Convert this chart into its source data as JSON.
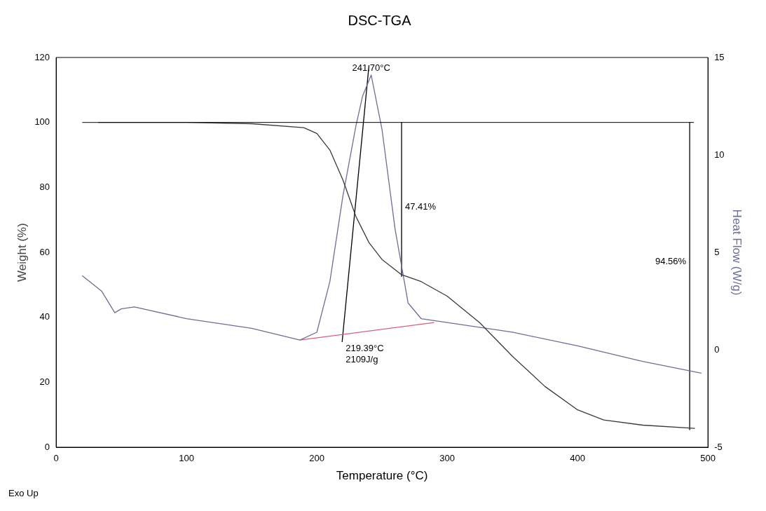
{
  "chart_data": {
    "type": "line",
    "title": "DSC-TGA",
    "xlabel": "Temperature (°C)",
    "ylabel": "Weight (%)",
    "y2label": "Heat Flow (W/g)",
    "xlim": [
      0,
      500
    ],
    "xticks": [
      0,
      100,
      200,
      300,
      400,
      500
    ],
    "ylim": [
      0,
      120
    ],
    "yticks": [
      0,
      20,
      40,
      60,
      80,
      100,
      120
    ],
    "y2lim": [
      -5,
      15
    ],
    "y2ticks": [
      -5,
      0,
      5,
      10,
      15
    ],
    "grid": false,
    "legend": false,
    "marker": "none",
    "line_style": "solid",
    "series": [
      {
        "color": "#3a3a3a",
        "x": [
          20,
          100,
          150,
          190,
          200,
          210,
          220,
          230,
          240,
          250,
          265,
          280,
          300,
          325,
          350,
          375,
          400,
          420,
          450,
          490
        ],
        "values": [
          100,
          100,
          99.6,
          98.4,
          96.6,
          91.5,
          82.3,
          71,
          63,
          57.8,
          53.1,
          51,
          46.5,
          38.3,
          28,
          18.7,
          11.5,
          8.4,
          6.8,
          5.8
        ]
      },
      {
        "color": "#6b6f9a",
        "axis": "y2",
        "x": [
          20,
          35,
          45,
          50,
          60,
          100,
          150,
          187,
          200,
          210,
          220,
          230,
          235,
          241.7,
          250,
          260,
          270,
          280,
          300,
          350,
          400,
          450,
          495
        ],
        "values": [
          3.8,
          3,
          1.9,
          2.1,
          2.2,
          1.6,
          1.1,
          0.5,
          0.9,
          3.5,
          7.9,
          11.5,
          13,
          14.1,
          11.3,
          6.2,
          2.4,
          1.6,
          1.4,
          0.9,
          0.2,
          -0.6,
          -1.2
        ]
      },
      {
        "color": "#d9607a",
        "axis": "y2",
        "x": [
          187,
          290
        ],
        "values": [
          0.5,
          1.4
        ]
      },
      {
        "color": "#000000",
        "axis": "y2",
        "x": [
          219.39,
          240
        ],
        "values": [
          0.4,
          14.6
        ]
      },
      {
        "color": "#000000",
        "x": [
          265,
          265
        ],
        "values": [
          100,
          52.6
        ]
      },
      {
        "color": "#000000",
        "x": [
          486,
          486
        ],
        "values": [
          100,
          5.4
        ]
      }
    ],
    "ref_lines": [
      {
        "axis": "y",
        "value": 100,
        "color": "#000000"
      }
    ],
    "annotations": [
      {
        "text": "241.70°C",
        "x": 241.7,
        "y": 114.6
      },
      {
        "text": "47.41%",
        "x": 265,
        "y": 76
      },
      {
        "text": "94.56%",
        "x": 486,
        "y": 57
      },
      {
        "text": "219.39°C",
        "x": 219.39,
        "y": 32.4
      },
      {
        "text": "2109J/g",
        "x": 219.39,
        "y": 32.4
      },
      "Exo Up"
    ]
  }
}
